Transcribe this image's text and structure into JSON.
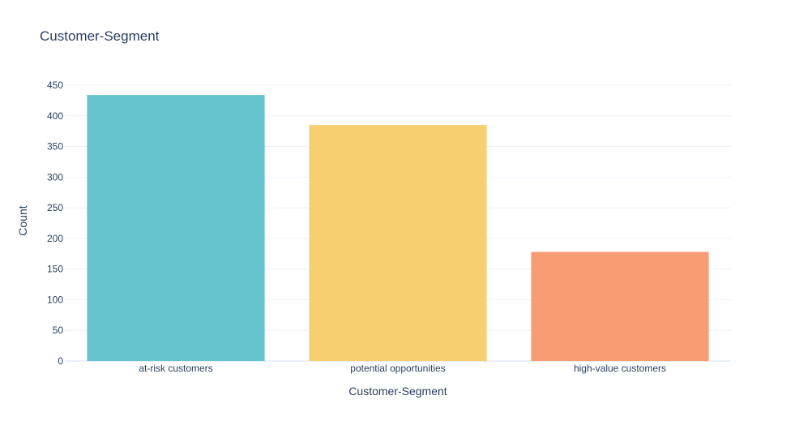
{
  "chart_data": {
    "type": "bar",
    "title": "Customer-Segment",
    "xlabel": "Customer-Segment",
    "ylabel": "Count",
    "categories": [
      "at-risk customers",
      "potential opportunities",
      "high-value customers"
    ],
    "values": [
      434,
      385,
      178
    ],
    "colors": [
      "#66c5cc",
      "#f6cf71",
      "#f89c74"
    ],
    "ylim": [
      0,
      450
    ],
    "yticks": [
      0,
      50,
      100,
      150,
      200,
      250,
      300,
      350,
      400,
      450
    ],
    "grid": true,
    "legend": "none"
  },
  "style": {
    "text_color": "#2a3f5f",
    "grid_color": "#ebf0f8",
    "axis_line_color": "#ebf0f8"
  }
}
